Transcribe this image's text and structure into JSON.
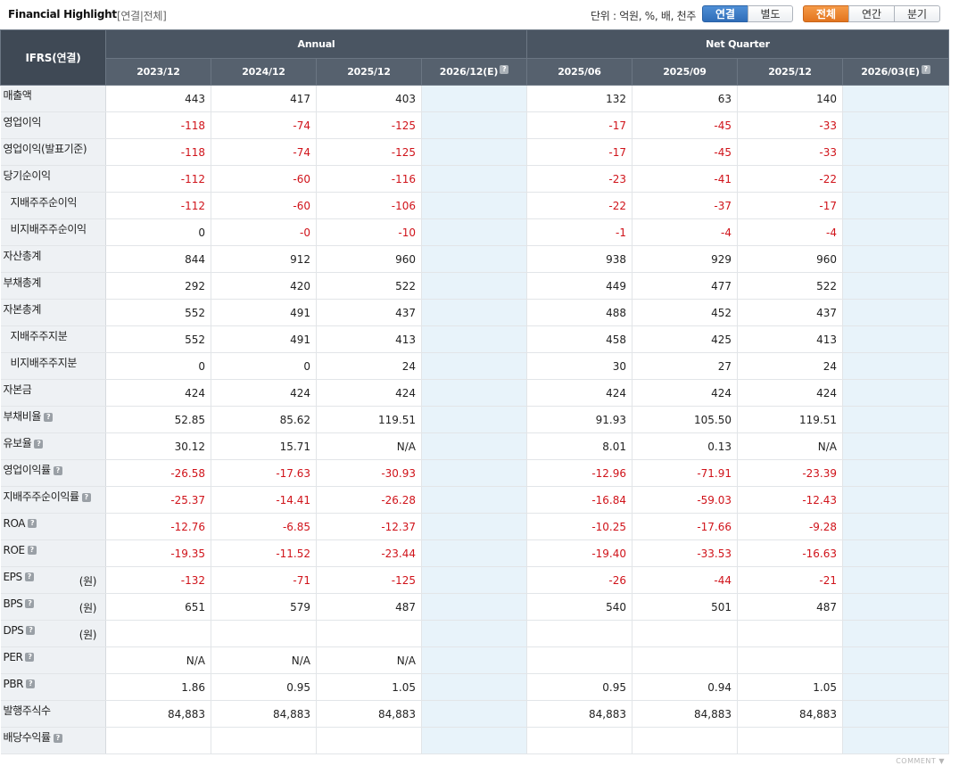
{
  "header": {
    "title": "Financial Highlight",
    "subtitle": "[연결|전체]",
    "unit_text": "단위 : 억원, %, 배, 천주",
    "scope_buttons": [
      "연결",
      "별도"
    ],
    "period_buttons": [
      "전체",
      "연간",
      "분기"
    ]
  },
  "table": {
    "corner": "IFRS(연결)",
    "group_annual": "Annual",
    "group_quarter": "Net Quarter",
    "columns": [
      "2023/12",
      "2024/12",
      "2025/12",
      "2026/12(E)",
      "2025/06",
      "2025/09",
      "2025/12",
      "2026/03(E)"
    ],
    "rows": [
      {
        "label": "매출액",
        "values": [
          "443",
          "417",
          "403",
          "",
          "132",
          "63",
          "140",
          ""
        ]
      },
      {
        "label": "영업이익",
        "values": [
          "-118",
          "-74",
          "-125",
          "",
          "-17",
          "-45",
          "-33",
          ""
        ]
      },
      {
        "label": "영업이익(발표기준)",
        "values": [
          "-118",
          "-74",
          "-125",
          "",
          "-17",
          "-45",
          "-33",
          ""
        ]
      },
      {
        "label": "당기순이익",
        "values": [
          "-112",
          "-60",
          "-116",
          "",
          "-23",
          "-41",
          "-22",
          ""
        ]
      },
      {
        "label": "지배주주순이익",
        "values": [
          "-112",
          "-60",
          "-106",
          "",
          "-22",
          "-37",
          "-17",
          ""
        ]
      },
      {
        "label": "비지배주주순이익",
        "values": [
          "0",
          "-0",
          "-10",
          "",
          "-1",
          "-4",
          "-4",
          ""
        ]
      },
      {
        "label": "자산총계",
        "values": [
          "844",
          "912",
          "960",
          "",
          "938",
          "929",
          "960",
          ""
        ]
      },
      {
        "label": "부채총계",
        "values": [
          "292",
          "420",
          "522",
          "",
          "449",
          "477",
          "522",
          ""
        ]
      },
      {
        "label": "자본총계",
        "values": [
          "552",
          "491",
          "437",
          "",
          "488",
          "452",
          "437",
          ""
        ]
      },
      {
        "label": "지배주주지분",
        "values": [
          "552",
          "491",
          "413",
          "",
          "458",
          "425",
          "413",
          ""
        ]
      },
      {
        "label": "비지배주주지분",
        "values": [
          "0",
          "0",
          "24",
          "",
          "30",
          "27",
          "24",
          ""
        ]
      },
      {
        "label": "자본금",
        "values": [
          "424",
          "424",
          "424",
          "",
          "424",
          "424",
          "424",
          ""
        ]
      },
      {
        "label": "부채비율",
        "values": [
          "52.85",
          "85.62",
          "119.51",
          "",
          "91.93",
          "105.50",
          "119.51",
          ""
        ]
      },
      {
        "label": "유보율",
        "values": [
          "30.12",
          "15.71",
          "N/A",
          "",
          "8.01",
          "0.13",
          "N/A",
          ""
        ]
      },
      {
        "label": "영업이익률",
        "values": [
          "-26.58",
          "-17.63",
          "-30.93",
          "",
          "-12.96",
          "-71.91",
          "-23.39",
          ""
        ]
      },
      {
        "label": "지배주주순이익률",
        "values": [
          "-25.37",
          "-14.41",
          "-26.28",
          "",
          "-16.84",
          "-59.03",
          "-12.43",
          ""
        ]
      },
      {
        "label": "ROA",
        "values": [
          "-12.76",
          "-6.85",
          "-12.37",
          "",
          "-10.25",
          "-17.66",
          "-9.28",
          ""
        ]
      },
      {
        "label": "ROE",
        "values": [
          "-19.35",
          "-11.52",
          "-23.44",
          "",
          "-19.40",
          "-33.53",
          "-16.63",
          ""
        ]
      },
      {
        "label": "EPS",
        "unit": "(원)",
        "values": [
          "-132",
          "-71",
          "-125",
          "",
          "-26",
          "-44",
          "-21",
          ""
        ]
      },
      {
        "label": "BPS",
        "unit": "(원)",
        "values": [
          "651",
          "579",
          "487",
          "",
          "540",
          "501",
          "487",
          ""
        ]
      },
      {
        "label": "DPS",
        "unit": "(원)",
        "values": [
          "",
          "",
          "",
          "",
          "",
          "",
          "",
          ""
        ]
      },
      {
        "label": "PER",
        "values": [
          "N/A",
          "N/A",
          "N/A",
          "",
          "",
          "",
          "",
          ""
        ]
      },
      {
        "label": "PBR",
        "values": [
          "1.86",
          "0.95",
          "1.05",
          "",
          "0.95",
          "0.94",
          "1.05",
          ""
        ]
      },
      {
        "label": "발행주식수",
        "values": [
          "84,883",
          "84,883",
          "84,883",
          "",
          "84,883",
          "84,883",
          "84,883",
          ""
        ]
      },
      {
        "label": "배당수익률",
        "values": [
          "",
          "",
          "",
          "",
          "",
          "",
          "",
          ""
        ]
      }
    ]
  },
  "help_icon_glyph": "?",
  "footer": {
    "comment": "COMMENT ▼"
  }
}
